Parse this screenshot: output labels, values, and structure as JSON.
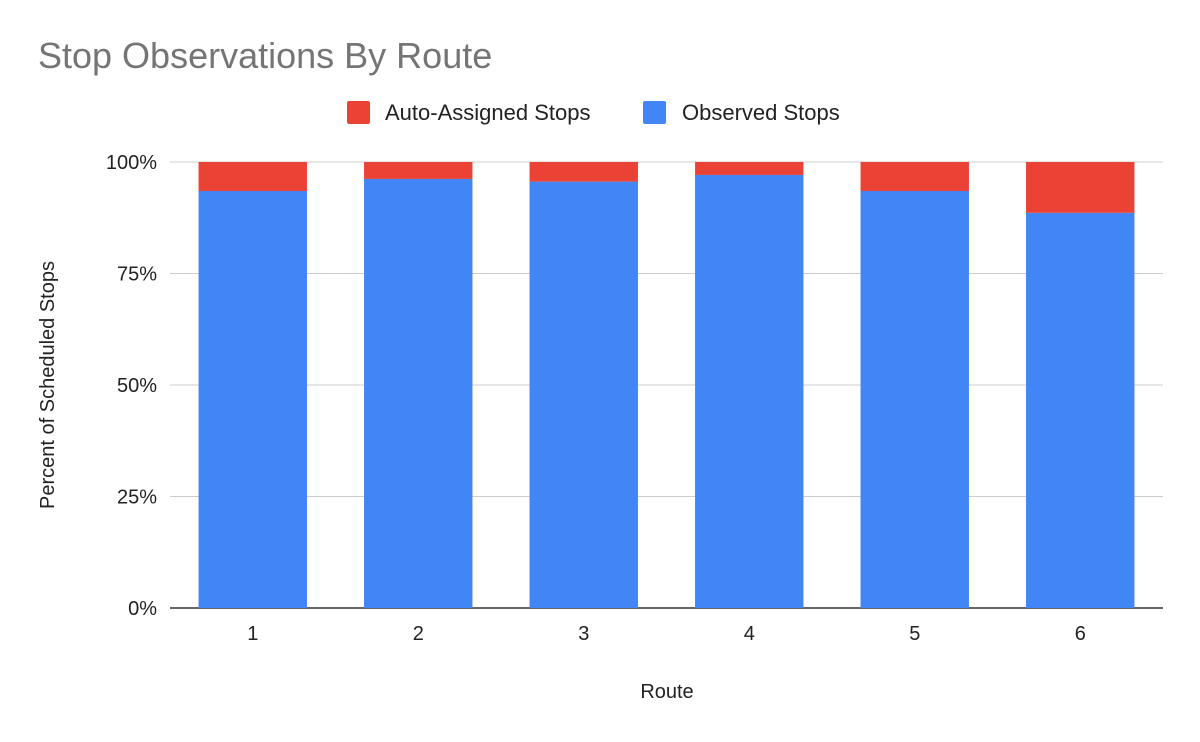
{
  "chart_data": {
    "type": "bar",
    "stacked": true,
    "title": "Stop Observations By Route",
    "xlabel": "Route",
    "ylabel": "Percent of Scheduled Stops",
    "categories": [
      "1",
      "2",
      "3",
      "4",
      "5",
      "6"
    ],
    "series": [
      {
        "name": "Observed Stops",
        "color": "#4285f4",
        "values": [
          93.5,
          96.2,
          95.6,
          97.1,
          93.5,
          88.6
        ]
      },
      {
        "name": "Auto-Assigned Stops",
        "color": "#ea4335",
        "values": [
          6.5,
          3.8,
          4.4,
          2.9,
          6.5,
          11.4
        ]
      }
    ],
    "legend_order": [
      "Auto-Assigned Stops",
      "Observed Stops"
    ],
    "legend_position": "top-center",
    "ylim": [
      0,
      100
    ],
    "yticks": [
      "0%",
      "25%",
      "50%",
      "75%",
      "100%"
    ],
    "grid": true
  }
}
